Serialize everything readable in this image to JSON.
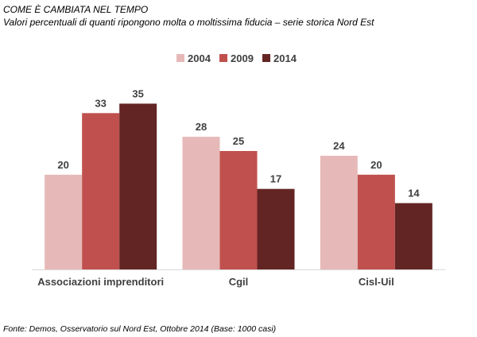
{
  "header": {
    "title": "COME È CAMBIATA NEL TEMPO",
    "subtitle": "Valori percentuali di quanti ripongono molta o moltissima fiducia – serie storica Nord Est"
  },
  "footer": {
    "source": "Fonte: Demos, Osservatorio sul Nord Est, Ottobre 2014 (Base: 1000 casi)"
  },
  "chart_data": {
    "type": "bar",
    "categories": [
      "Associazioni imprenditori",
      "Cgil",
      "Cisl-Uil"
    ],
    "series": [
      {
        "name": "2004",
        "values": [
          20,
          28,
          24
        ],
        "color": "#E6B9B8"
      },
      {
        "name": "2009",
        "values": [
          33,
          25,
          20
        ],
        "color": "#C0504D"
      },
      {
        "name": "2014",
        "values": [
          35,
          17,
          14
        ],
        "color": "#632523"
      }
    ],
    "legend_position": "top-center",
    "grid": false,
    "show_value_labels": true,
    "ylim": [
      0,
      40
    ]
  }
}
